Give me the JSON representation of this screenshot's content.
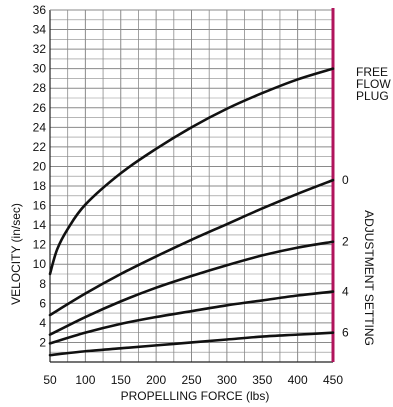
{
  "chart_data": {
    "type": "line",
    "title": "",
    "xlabel": "PROPELLING FORCE (lbs)",
    "ylabel": "VELOCITY (in/sec)",
    "xlim": [
      50,
      450
    ],
    "ylim": [
      0,
      36
    ],
    "xticks": [
      50,
      100,
      150,
      200,
      250,
      300,
      350,
      400,
      450
    ],
    "yticks": [
      2,
      4,
      6,
      8,
      10,
      12,
      14,
      16,
      18,
      20,
      22,
      24,
      26,
      28,
      30,
      32,
      34,
      36
    ],
    "grid": true,
    "right_axis_color": "#b0145c",
    "curve_color": "#111111",
    "free_flow_label": [
      "FREE",
      "FLOW",
      "PLUG"
    ],
    "adjustment_axis_title": "ADJUSTMENT SETTING",
    "series": [
      {
        "label": "FREE FLOW PLUG",
        "points": [
          [
            50,
            9.0
          ],
          [
            60,
            11.5
          ],
          [
            75,
            13.6
          ],
          [
            100,
            16.1
          ],
          [
            150,
            19.3
          ],
          [
            200,
            21.8
          ],
          [
            250,
            24.0
          ],
          [
            300,
            25.9
          ],
          [
            350,
            27.5
          ],
          [
            400,
            28.9
          ],
          [
            450,
            30.0
          ]
        ]
      },
      {
        "label": "0",
        "points": [
          [
            50,
            4.8
          ],
          [
            100,
            7.0
          ],
          [
            150,
            9.0
          ],
          [
            200,
            10.8
          ],
          [
            250,
            12.5
          ],
          [
            300,
            14.1
          ],
          [
            350,
            15.7
          ],
          [
            400,
            17.2
          ],
          [
            450,
            18.6
          ]
        ]
      },
      {
        "label": "2",
        "points": [
          [
            50,
            2.8
          ],
          [
            100,
            4.6
          ],
          [
            150,
            6.2
          ],
          [
            200,
            7.6
          ],
          [
            250,
            8.8
          ],
          [
            300,
            9.9
          ],
          [
            350,
            10.9
          ],
          [
            400,
            11.7
          ],
          [
            450,
            12.3
          ]
        ]
      },
      {
        "label": "4",
        "points": [
          [
            50,
            1.9
          ],
          [
            100,
            3.0
          ],
          [
            150,
            3.9
          ],
          [
            200,
            4.6
          ],
          [
            250,
            5.2
          ],
          [
            300,
            5.8
          ],
          [
            350,
            6.3
          ],
          [
            400,
            6.8
          ],
          [
            450,
            7.2
          ]
        ]
      },
      {
        "label": "6",
        "points": [
          [
            50,
            0.7
          ],
          [
            100,
            1.1
          ],
          [
            150,
            1.4
          ],
          [
            200,
            1.7
          ],
          [
            250,
            2.0
          ],
          [
            300,
            2.3
          ],
          [
            350,
            2.6
          ],
          [
            400,
            2.8
          ],
          [
            450,
            3.0
          ]
        ]
      }
    ]
  }
}
